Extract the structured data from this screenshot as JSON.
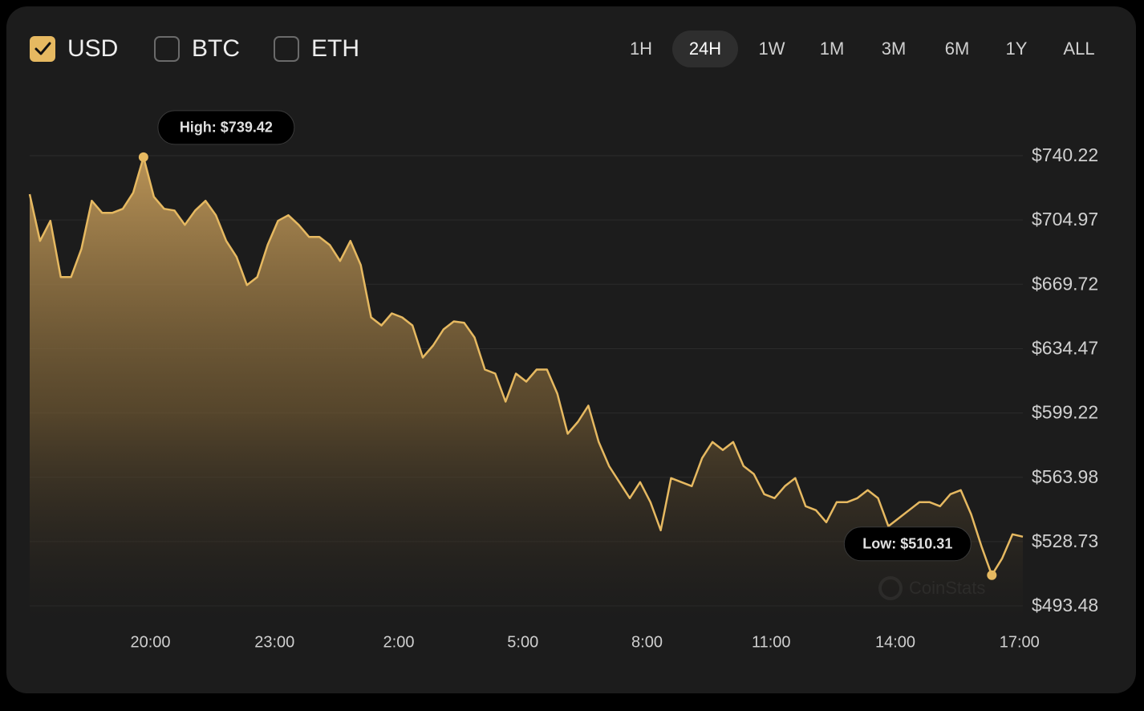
{
  "currencies": [
    {
      "label": "USD",
      "checked": true
    },
    {
      "label": "BTC",
      "checked": false
    },
    {
      "label": "ETH",
      "checked": false
    }
  ],
  "ranges": [
    {
      "label": "1H",
      "active": false
    },
    {
      "label": "24H",
      "active": true
    },
    {
      "label": "1W",
      "active": false
    },
    {
      "label": "1M",
      "active": false
    },
    {
      "label": "3M",
      "active": false
    },
    {
      "label": "6M",
      "active": false
    },
    {
      "label": "1Y",
      "active": false
    },
    {
      "label": "ALL",
      "active": false
    }
  ],
  "watermark": "CoinStats",
  "chart_data": {
    "type": "area",
    "color": "#e6b961",
    "grid": true,
    "high_label": "High: $739.42",
    "low_label": "Low: $510.31",
    "values": [
      719.1,
      693.5,
      704.5,
      673.7,
      673.7,
      689.1,
      715.5,
      708.9,
      708.9,
      711.1,
      719.9,
      739.42,
      717.7,
      711.1,
      710.2,
      702.3,
      710.2,
      715.5,
      707.6,
      693.5,
      684.7,
      669.3,
      673.7,
      691.3,
      704.5,
      707.6,
      702.3,
      695.7,
      695.7,
      691.3,
      682.5,
      693.5,
      680.3,
      651.6,
      647.2,
      653.8,
      651.6,
      647.2,
      629.6,
      636.2,
      645.0,
      649.4,
      648.6,
      640.6,
      623.0,
      620.8,
      605.4,
      620.8,
      616.4,
      623.0,
      623.0,
      609.8,
      587.8,
      594.4,
      603.2,
      583.3,
      570.1,
      561.3,
      552.5,
      561.3,
      550.3,
      534.9,
      563.5,
      561.3,
      559.1,
      574.5,
      583.3,
      578.9,
      583.3,
      570.1,
      565.7,
      554.7,
      552.5,
      559.1,
      563.5,
      548.1,
      545.9,
      539.3,
      550.3,
      550.3,
      552.5,
      556.9,
      552.5,
      537.1,
      541.5,
      545.9,
      550.3,
      550.3,
      548.1,
      554.7,
      556.9,
      543.7,
      526.1,
      510.31,
      519.5,
      532.7,
      531.4
    ],
    "xlim": [
      0,
      96
    ],
    "xticks": [
      {
        "value": 11.67,
        "label": "20:00"
      },
      {
        "value": 23.67,
        "label": "23:00"
      },
      {
        "value": 35.67,
        "label": "2:00"
      },
      {
        "value": 47.67,
        "label": "5:00"
      },
      {
        "value": 59.67,
        "label": "8:00"
      },
      {
        "value": 71.67,
        "label": "11:00"
      },
      {
        "value": 83.67,
        "label": "14:00"
      },
      {
        "value": 95.67,
        "label": "17:00"
      }
    ],
    "ylim": [
      493.48,
      740.22
    ],
    "yticks": [
      {
        "value": 740.22,
        "label": "$740.22"
      },
      {
        "value": 704.97,
        "label": "$704.97"
      },
      {
        "value": 669.72,
        "label": "$669.72"
      },
      {
        "value": 634.47,
        "label": "$634.47"
      },
      {
        "value": 599.22,
        "label": "$599.22"
      },
      {
        "value": 563.98,
        "label": "$563.98"
      },
      {
        "value": 528.73,
        "label": "$528.73"
      },
      {
        "value": 493.48,
        "label": "$493.48"
      }
    ]
  }
}
